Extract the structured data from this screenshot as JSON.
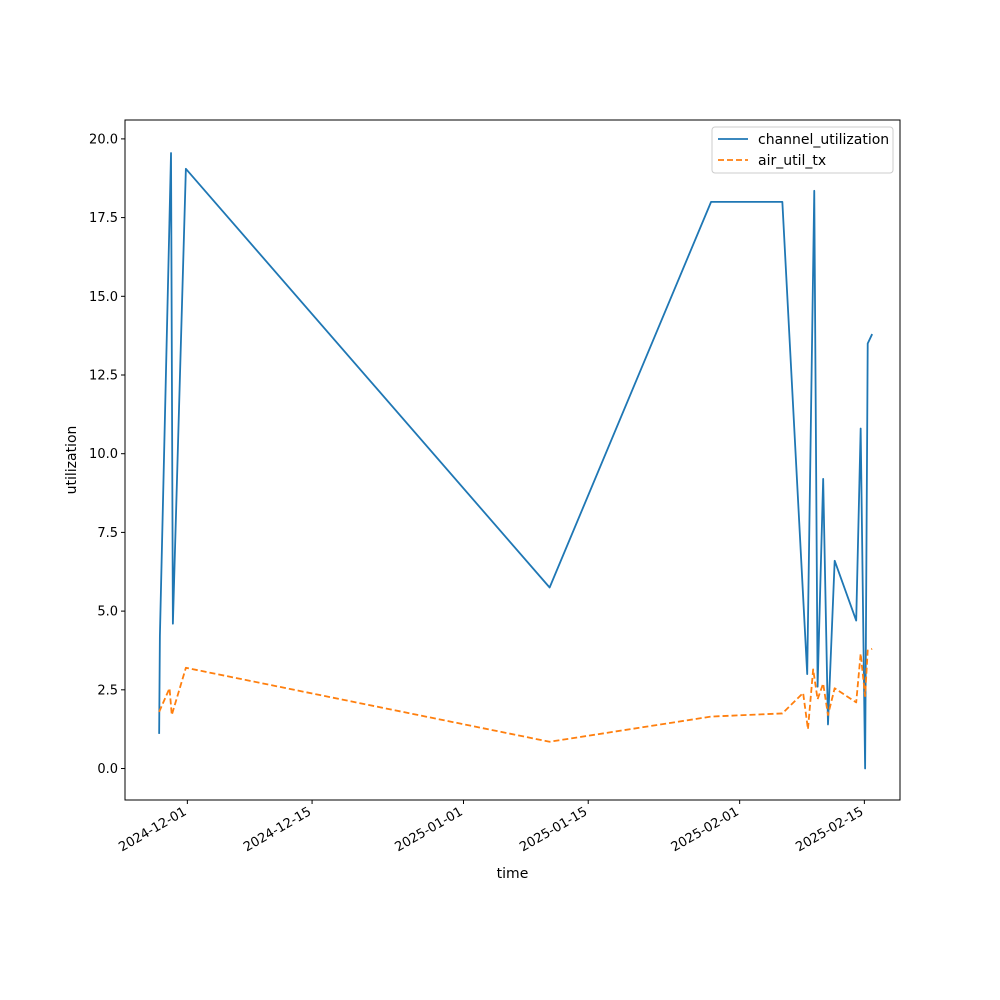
{
  "chart_data": {
    "type": "line",
    "title": "",
    "xlabel": "time",
    "ylabel": "utilization",
    "x_type": "datetime",
    "xlim": [
      "2024-11-24",
      "2025-02-19"
    ],
    "ylim": [
      -1.0,
      20.6
    ],
    "grid": false,
    "legend_position": "upper right",
    "x_ticks": [
      "2024-12-01",
      "2024-12-15",
      "2025-01-01",
      "2025-01-15",
      "2025-02-01",
      "2025-02-15"
    ],
    "y_ticks": [
      "0.0",
      "2.5",
      "5.0",
      "7.5",
      "10.0",
      "12.5",
      "15.0",
      "17.5",
      "20.0"
    ],
    "series": [
      {
        "name": "channel_utilization",
        "color": "#1f77b4",
        "style": "solid",
        "points": [
          [
            "2024-11-27 20:00",
            1.1
          ],
          [
            "2024-11-27 22:00",
            4.2
          ],
          [
            "2024-11-29 04:00",
            19.55
          ],
          [
            "2024-11-29 09:00",
            4.6
          ],
          [
            "2024-11-30 20:00",
            19.05
          ],
          [
            "2025-01-10 16:00",
            5.75
          ],
          [
            "2025-01-28 19:00",
            18.0
          ],
          [
            "2025-02-05 19:00",
            18.0
          ],
          [
            "2025-02-08 14:00",
            3.0
          ],
          [
            "2025-02-09 09:00",
            18.35
          ],
          [
            "2025-02-09 18:00",
            2.6
          ],
          [
            "2025-02-10 09:00",
            9.2
          ],
          [
            "2025-02-10 22:00",
            1.4
          ],
          [
            "2025-02-11 16:00",
            6.6
          ],
          [
            "2025-02-14 02:00",
            4.7
          ],
          [
            "2025-02-14 14:00",
            10.8
          ],
          [
            "2025-02-15 02:00",
            0.0
          ],
          [
            "2025-02-15 09:00",
            13.5
          ],
          [
            "2025-02-15 21:00",
            13.8
          ]
        ]
      },
      {
        "name": "air_util_tx",
        "color": "#ff7f0e",
        "style": "dashed",
        "points": [
          [
            "2024-11-27 20:00",
            1.8
          ],
          [
            "2024-11-29 00:00",
            2.55
          ],
          [
            "2024-11-29 06:00",
            1.7
          ],
          [
            "2024-11-30 20:00",
            3.2
          ],
          [
            "2025-01-10 16:00",
            0.85
          ],
          [
            "2025-01-28 19:00",
            1.65
          ],
          [
            "2025-02-05 19:00",
            1.75
          ],
          [
            "2025-02-08 03:00",
            2.4
          ],
          [
            "2025-02-08 16:00",
            1.25
          ],
          [
            "2025-02-09 06:00",
            3.15
          ],
          [
            "2025-02-09 18:00",
            2.2
          ],
          [
            "2025-02-10 09:00",
            2.7
          ],
          [
            "2025-02-10 22:00",
            1.7
          ],
          [
            "2025-02-11 16:00",
            2.55
          ],
          [
            "2025-02-14 02:00",
            2.1
          ],
          [
            "2025-02-14 14:00",
            3.65
          ],
          [
            "2025-02-15 02:00",
            2.3
          ],
          [
            "2025-02-15 09:00",
            3.75
          ],
          [
            "2025-02-15 21:00",
            3.8
          ]
        ]
      }
    ]
  }
}
